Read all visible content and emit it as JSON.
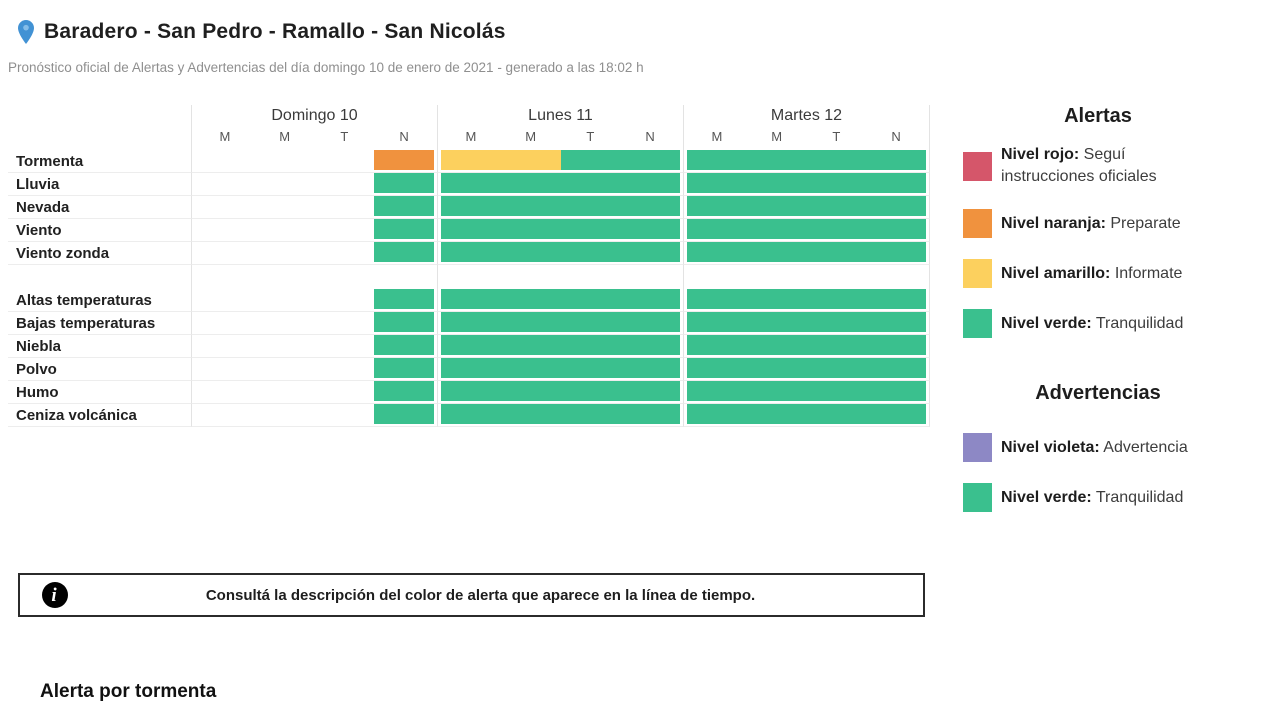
{
  "palette": {
    "green": "#3ac08e",
    "orange": "#f0923e",
    "yellow": "#fcd05e",
    "red": "#d5566a",
    "violet": "#8d88c5",
    "pin_blue": "#4292d4",
    "pin_inner": "#85bde8"
  },
  "header": {
    "title": "Baradero - San Pedro - Ramallo - San Nicolás",
    "subtitle": "Pronóstico oficial de Alertas y Advertencias del día domingo 10 de enero de 2021 - generado a las 18:02 h"
  },
  "timeline": {
    "days": [
      {
        "name": "Domingo 10",
        "periods": [
          "M",
          "M",
          "T",
          "N"
        ]
      },
      {
        "name": "Lunes 11",
        "periods": [
          "M",
          "M",
          "T",
          "N"
        ]
      },
      {
        "name": "Martes 12",
        "periods": [
          "M",
          "M",
          "T",
          "N"
        ]
      }
    ],
    "groups": [
      {
        "rows": [
          {
            "label": "Tormenta",
            "days": [
              [
                {
                  "color": "none",
                  "span": 3
                },
                {
                  "color": "orange",
                  "span": 1
                }
              ],
              [
                {
                  "color": "yellow",
                  "span": 2
                },
                {
                  "color": "green",
                  "span": 2
                }
              ],
              [
                {
                  "color": "green",
                  "span": 4
                }
              ]
            ]
          },
          {
            "label": "Lluvia",
            "days": [
              [
                {
                  "color": "none",
                  "span": 3
                },
                {
                  "color": "green",
                  "span": 1
                }
              ],
              [
                {
                  "color": "green",
                  "span": 4
                }
              ],
              [
                {
                  "color": "green",
                  "span": 4
                }
              ]
            ]
          },
          {
            "label": "Nevada",
            "days": [
              [
                {
                  "color": "none",
                  "span": 3
                },
                {
                  "color": "green",
                  "span": 1
                }
              ],
              [
                {
                  "color": "green",
                  "span": 4
                }
              ],
              [
                {
                  "color": "green",
                  "span": 4
                }
              ]
            ]
          },
          {
            "label": "Viento",
            "days": [
              [
                {
                  "color": "none",
                  "span": 3
                },
                {
                  "color": "green",
                  "span": 1
                }
              ],
              [
                {
                  "color": "green",
                  "span": 4
                }
              ],
              [
                {
                  "color": "green",
                  "span": 4
                }
              ]
            ]
          },
          {
            "label": "Viento zonda",
            "days": [
              [
                {
                  "color": "none",
                  "span": 3
                },
                {
                  "color": "green",
                  "span": 1
                }
              ],
              [
                {
                  "color": "green",
                  "span": 4
                }
              ],
              [
                {
                  "color": "green",
                  "span": 4
                }
              ]
            ]
          }
        ]
      },
      {
        "rows": [
          {
            "label": "Altas temperaturas",
            "days": [
              [
                {
                  "color": "none",
                  "span": 3
                },
                {
                  "color": "green",
                  "span": 1
                }
              ],
              [
                {
                  "color": "green",
                  "span": 4
                }
              ],
              [
                {
                  "color": "green",
                  "span": 4
                }
              ]
            ]
          },
          {
            "label": "Bajas temperaturas",
            "days": [
              [
                {
                  "color": "none",
                  "span": 3
                },
                {
                  "color": "green",
                  "span": 1
                }
              ],
              [
                {
                  "color": "green",
                  "span": 4
                }
              ],
              [
                {
                  "color": "green",
                  "span": 4
                }
              ]
            ]
          },
          {
            "label": "Niebla",
            "days": [
              [
                {
                  "color": "none",
                  "span": 3
                },
                {
                  "color": "green",
                  "span": 1
                }
              ],
              [
                {
                  "color": "green",
                  "span": 4
                }
              ],
              [
                {
                  "color": "green",
                  "span": 4
                }
              ]
            ]
          },
          {
            "label": "Polvo",
            "days": [
              [
                {
                  "color": "none",
                  "span": 3
                },
                {
                  "color": "green",
                  "span": 1
                }
              ],
              [
                {
                  "color": "green",
                  "span": 4
                }
              ],
              [
                {
                  "color": "green",
                  "span": 4
                }
              ]
            ]
          },
          {
            "label": "Humo",
            "days": [
              [
                {
                  "color": "none",
                  "span": 3
                },
                {
                  "color": "green",
                  "span": 1
                }
              ],
              [
                {
                  "color": "green",
                  "span": 4
                }
              ],
              [
                {
                  "color": "green",
                  "span": 4
                }
              ]
            ]
          },
          {
            "label": "Ceniza volcánica",
            "days": [
              [
                {
                  "color": "none",
                  "span": 3
                },
                {
                  "color": "green",
                  "span": 1
                }
              ],
              [
                {
                  "color": "green",
                  "span": 4
                }
              ],
              [
                {
                  "color": "green",
                  "span": 4
                }
              ]
            ]
          }
        ]
      }
    ]
  },
  "note": {
    "text": "Consultá la descripción del color de alerta que aparece en la línea de tiempo."
  },
  "legend": {
    "sections": [
      {
        "title": "Alertas",
        "items": [
          {
            "color": "red",
            "label": "Nivel rojo:",
            "desc": " Seguí\ninstrucciones oficiales"
          },
          {
            "color": "orange",
            "label": "Nivel naranja:",
            "desc": " Preparate"
          },
          {
            "color": "yellow",
            "label": "Nivel amarillo:",
            "desc": " Informate"
          },
          {
            "color": "green",
            "label": "Nivel verde:",
            "desc": " Tranquilidad"
          }
        ]
      },
      {
        "title": "Advertencias",
        "items": [
          {
            "color": "violet",
            "label": "Nivel violeta:",
            "desc": " Advertencia"
          },
          {
            "color": "green",
            "label": "Nivel verde:",
            "desc": " Tranquilidad"
          }
        ]
      }
    ]
  },
  "footer": {
    "section_title": "Alerta por tormenta"
  }
}
